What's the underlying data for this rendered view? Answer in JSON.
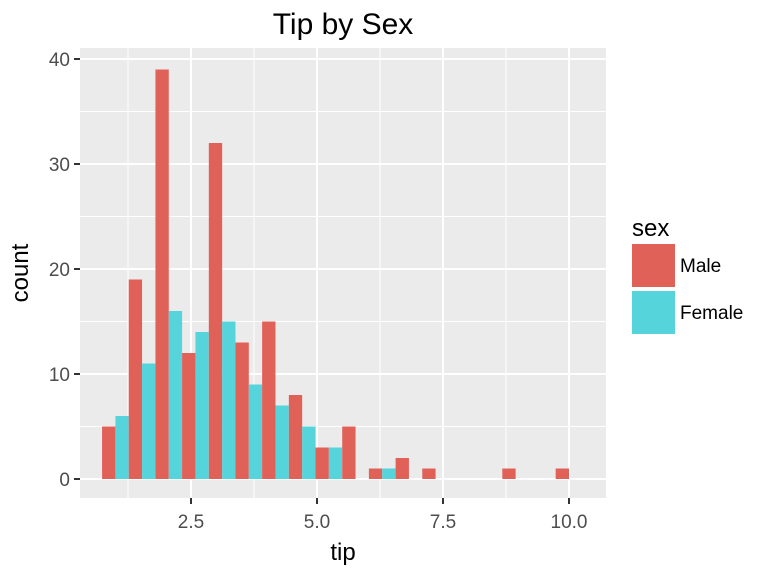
{
  "chart_data": {
    "type": "bar",
    "title": "Tip by Sex",
    "xlabel": "tip",
    "ylabel": "count",
    "xlim": [
      0.5,
      10.75
    ],
    "ylim": [
      -2,
      42
    ],
    "x_ticks": [
      2.5,
      5.0,
      7.5,
      10.0
    ],
    "x_tick_labels": [
      "2.5",
      "5.0",
      "7.5",
      "10.0"
    ],
    "y_ticks": [
      0,
      10,
      20,
      30,
      40
    ],
    "y_tick_labels": [
      "0",
      "10",
      "20",
      "30",
      "40"
    ],
    "bin_centers": [
      1.0,
      1.529,
      2.059,
      2.588,
      3.118,
      3.647,
      4.176,
      4.706,
      5.235,
      5.765,
      6.294,
      6.824,
      7.353,
      7.882,
      8.412,
      8.941,
      9.471,
      10.0
    ],
    "bin_width": 0.529,
    "grid": true,
    "legend": {
      "title": "sex",
      "placement": "right"
    },
    "series": [
      {
        "name": "Male",
        "color": "#E06158",
        "values": [
          5,
          19,
          39,
          12,
          32,
          13,
          15,
          8,
          3,
          5,
          1,
          2,
          1,
          0,
          0,
          1,
          0,
          1
        ]
      },
      {
        "name": "Female",
        "color": "#56D4DB",
        "values": [
          6,
          11,
          16,
          14,
          15,
          9,
          7,
          5,
          3,
          0,
          1,
          0,
          0,
          0,
          0,
          0,
          0,
          0
        ]
      }
    ]
  }
}
